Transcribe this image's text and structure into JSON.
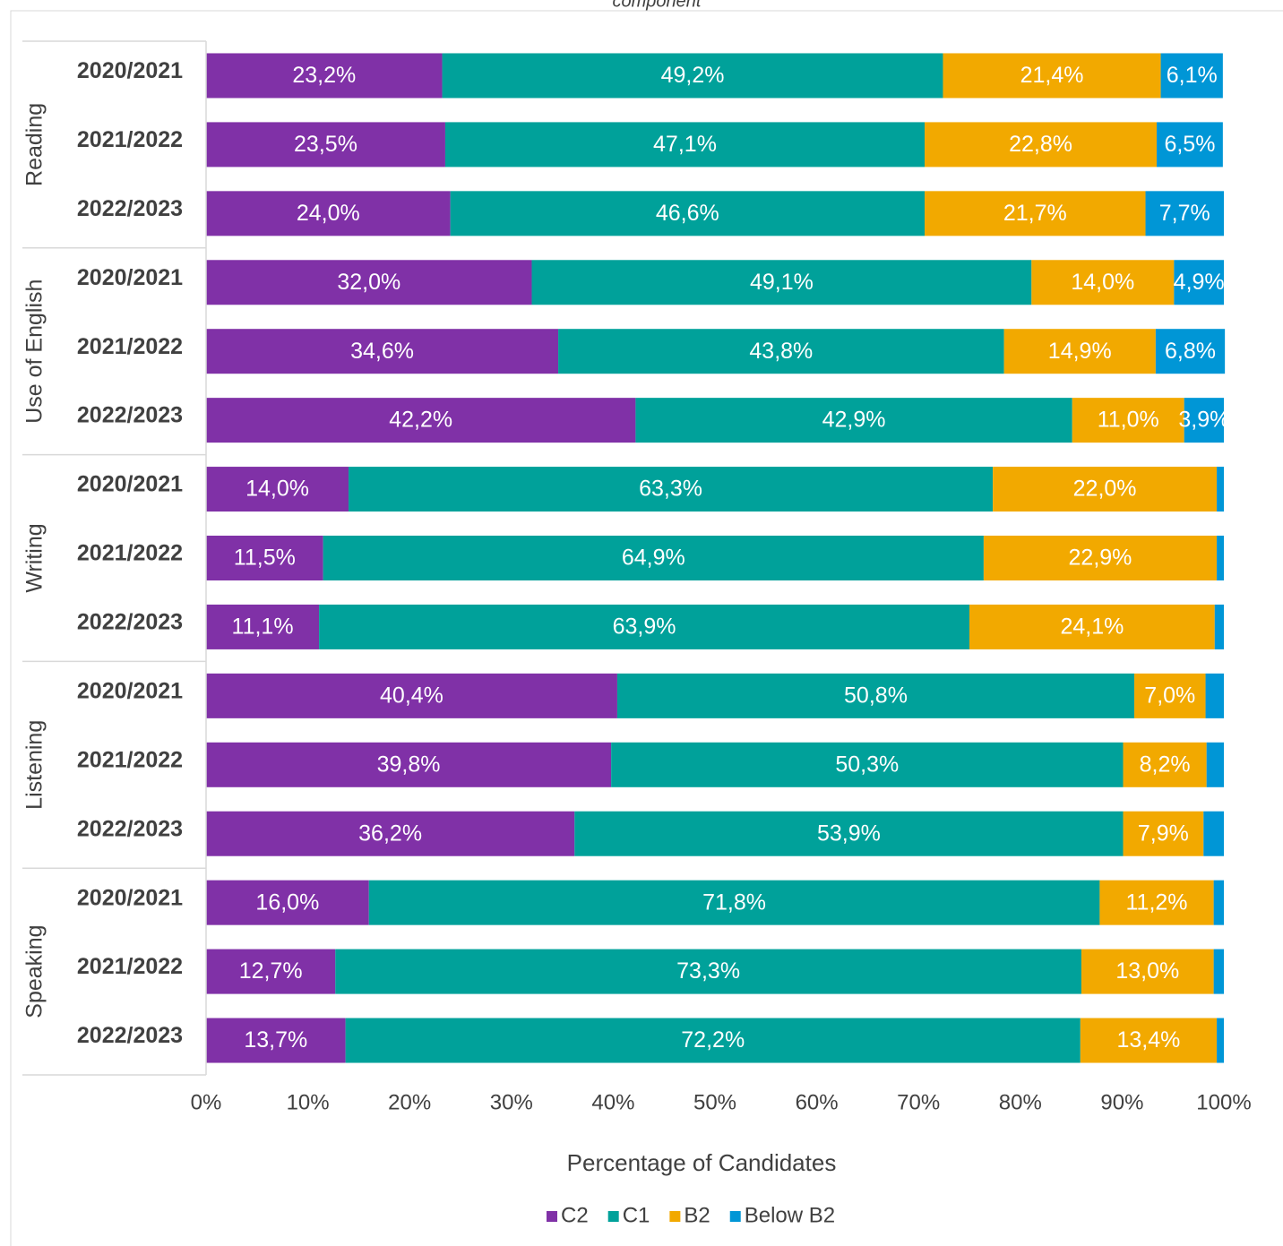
{
  "chart_data": {
    "type": "bar",
    "orientation": "horizontal",
    "stacked": true,
    "title": "component",
    "xlabel": "Percentage of Candidates",
    "groups": [
      "Reading",
      "Use of English",
      "Writing",
      "Listening",
      "Speaking"
    ],
    "categories": [
      "2020/2021",
      "2021/2022",
      "2022/2023",
      "2020/2021",
      "2021/2022",
      "2022/2023",
      "2020/2021",
      "2021/2022",
      "2022/2023",
      "2020/2021",
      "2021/2022",
      "2022/2023",
      "2020/2021",
      "2021/2022",
      "2022/2023"
    ],
    "series": [
      {
        "name": "C2",
        "color": "#8031a7",
        "values": [
          23.2,
          23.5,
          24.0,
          32.0,
          34.6,
          42.2,
          14.0,
          11.5,
          11.1,
          40.4,
          39.8,
          36.2,
          16.0,
          12.7,
          13.7
        ],
        "value_labels": [
          "23,2%",
          "23,5%",
          "24,0%",
          "32,0%",
          "34,6%",
          "42,2%",
          "14,0%",
          "11,5%",
          "11,1%",
          "40,4%",
          "39,8%",
          "36,2%",
          "16,0%",
          "12,7%",
          "13,7%"
        ]
      },
      {
        "name": "C1",
        "color": "#00a19a",
        "values": [
          49.2,
          47.1,
          46.6,
          49.1,
          43.8,
          42.9,
          63.3,
          64.9,
          63.9,
          50.8,
          50.3,
          53.9,
          71.8,
          73.3,
          72.2
        ],
        "value_labels": [
          "49,2%",
          "47,1%",
          "46,6%",
          "49,1%",
          "43,8%",
          "42,9%",
          "63,3%",
          "64,9%",
          "63,9%",
          "50,8%",
          "50,3%",
          "53,9%",
          "71,8%",
          "73,3%",
          "72,2%"
        ]
      },
      {
        "name": "B2",
        "color": "#f2a900",
        "values": [
          21.4,
          22.8,
          21.7,
          14.0,
          14.9,
          11.0,
          22.0,
          22.9,
          24.1,
          7.0,
          8.2,
          7.9,
          11.2,
          13.0,
          13.4
        ],
        "value_labels": [
          "21,4%",
          "22,8%",
          "21,7%",
          "14,0%",
          "14,9%",
          "11,0%",
          "22,0%",
          "22,9%",
          "24,1%",
          "7,0%",
          "8,2%",
          "7,9%",
          "11,2%",
          "13,0%",
          "13,4%"
        ]
      },
      {
        "name": "Below B2",
        "color": "#0096d6",
        "values": [
          6.1,
          6.5,
          7.7,
          4.9,
          6.8,
          3.9,
          0.7,
          0.7,
          0.9,
          1.8,
          1.7,
          2.0,
          1.0,
          1.0,
          0.7
        ],
        "value_labels": [
          "6,1%",
          "6,5%",
          "7,7%",
          "4,9%",
          "6,8%",
          "3,9%",
          null,
          null,
          null,
          null,
          null,
          null,
          null,
          null,
          null
        ]
      }
    ],
    "xlim": [
      0,
      100
    ],
    "xticks": [
      {
        "value": 0,
        "label": "0%"
      },
      {
        "value": 10,
        "label": "10%"
      },
      {
        "value": 20,
        "label": "20%"
      },
      {
        "value": 30,
        "label": "30%"
      },
      {
        "value": 40,
        "label": "40%"
      },
      {
        "value": 50,
        "label": "50%"
      },
      {
        "value": 60,
        "label": "60%"
      },
      {
        "value": 70,
        "label": "70%"
      },
      {
        "value": 80,
        "label": "80%"
      },
      {
        "value": 90,
        "label": "90%"
      },
      {
        "value": 100,
        "label": "100%"
      }
    ],
    "grid": false,
    "legend": "bottom"
  }
}
